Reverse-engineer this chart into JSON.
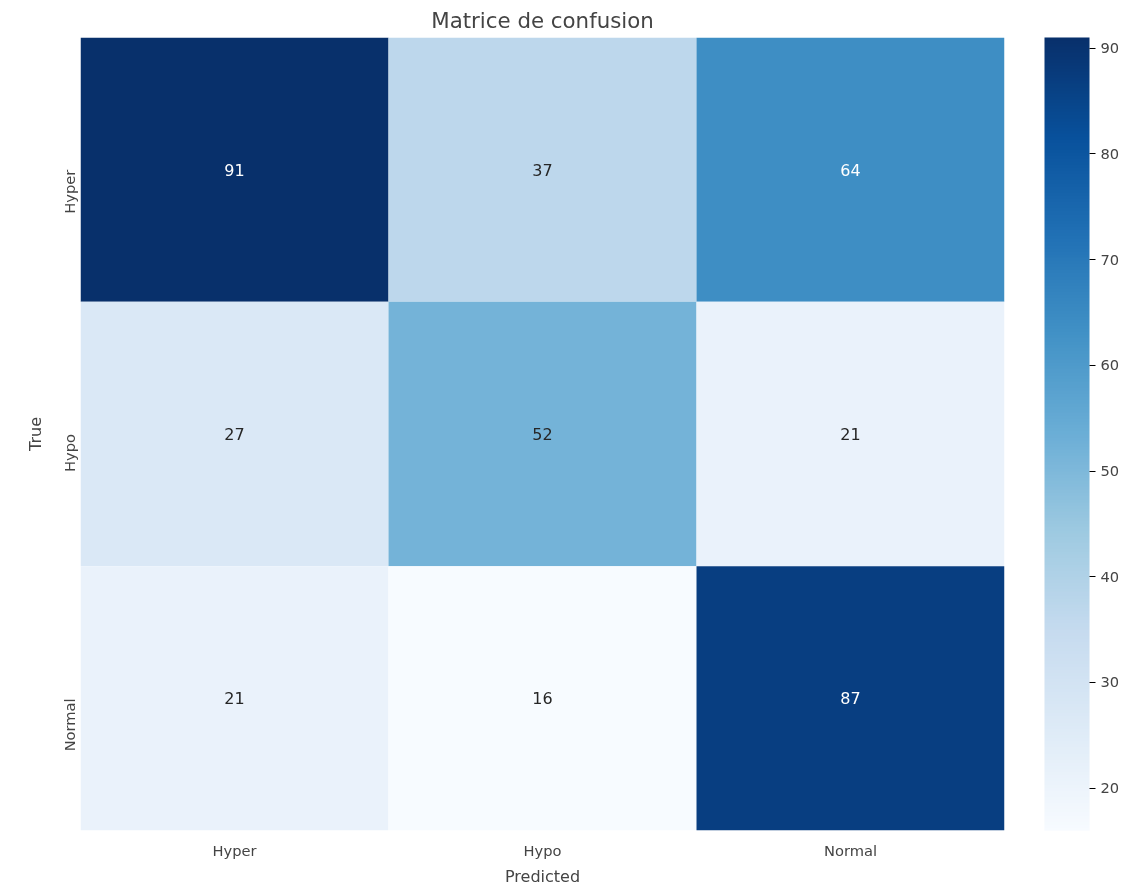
{
  "chart_data": {
    "type": "heatmap",
    "title": "Matrice de confusion",
    "xlabel": "Predicted",
    "ylabel": "True",
    "categories": [
      "Hyper",
      "Hypo",
      "Normal"
    ],
    "y_categories": [
      "Hyper",
      "Hypo",
      "Normal"
    ],
    "cells": [
      [
        91,
        37,
        64
      ],
      [
        27,
        52,
        21
      ],
      [
        21,
        16,
        87
      ]
    ],
    "clim": [
      16,
      91
    ],
    "cticks": [
      20,
      30,
      40,
      50,
      60,
      70,
      80,
      90
    ],
    "data_labels": true
  }
}
